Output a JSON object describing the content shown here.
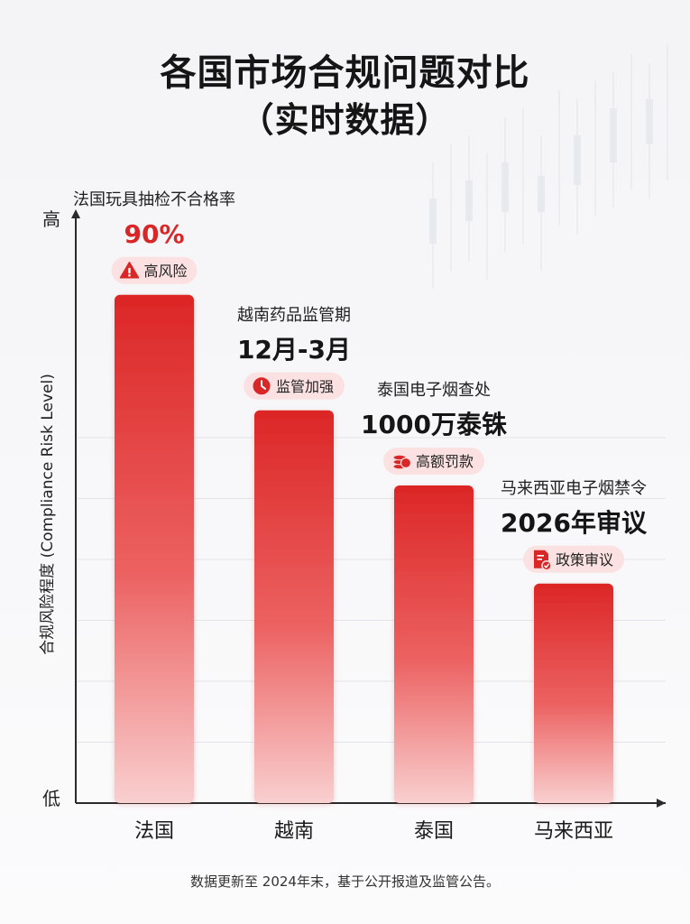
{
  "title": "各国市场合规问题对比",
  "subtitle": "（实时数据）",
  "footer": "数据更新至 2024年末，基于公开报道及监管公告。",
  "colors": {
    "bar_top": "#dc2626",
    "bar_bottom": "#f9cfcf",
    "badge_bg": "#fbe1e1",
    "badge_icon": "#d92626",
    "axis": "#2a2a2a"
  },
  "chart_data": {
    "type": "bar",
    "ylabel": "合规风险程度 (Compliance Risk Level)",
    "y_tick_high": "高",
    "y_tick_low": "低",
    "ylim": [
      0,
      100
    ],
    "grid": true,
    "categories": [
      "法国",
      "越南",
      "泰国",
      "马来西亚"
    ],
    "values": [
      88,
      68,
      55,
      38
    ],
    "annotations": [
      {
        "label": "法国玩具抽检不合格率",
        "value": "90%",
        "badge": "高风险",
        "badge_icon": "warning-icon",
        "value_color": "#d92626"
      },
      {
        "label": "越南药品监管期",
        "value": "12月-3月",
        "badge": "监管加强",
        "badge_icon": "clock-icon",
        "value_color": "#151515"
      },
      {
        "label": "泰国电子烟查处",
        "value": "1000万泰铢",
        "badge": "高额罚款",
        "badge_icon": "coins-icon",
        "value_color": "#151515"
      },
      {
        "label": "马来西亚电子烟禁令",
        "value": "2026年审议",
        "badge": "政策审议",
        "badge_icon": "document-check-icon",
        "value_color": "#151515"
      }
    ]
  }
}
